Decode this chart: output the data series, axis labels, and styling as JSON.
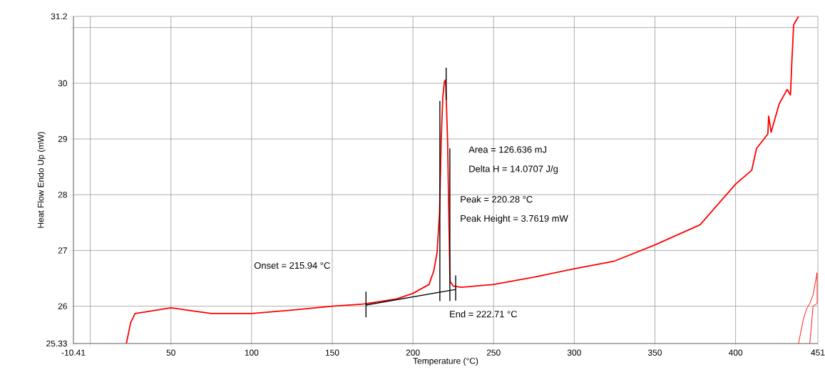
{
  "chart_data": {
    "type": "line",
    "xlabel": "Temperature (°C)",
    "ylabel": "Heat Flow Endo Up (mW)",
    "xlim": [
      -10.41,
      451
    ],
    "ylim": [
      25.33,
      31.2
    ],
    "xticks": [
      -10.41,
      {
        "value": 0,
        "label": null
      },
      50,
      100,
      150,
      200,
      250,
      300,
      350,
      400,
      451
    ],
    "yticks": [
      25.33,
      26,
      27,
      28,
      29,
      30,
      {
        "value": 31,
        "label": null
      },
      31.2
    ],
    "grid": true,
    "series": [
      {
        "color": "#ff0000",
        "x": [
          22.4,
          25,
          27.8,
          35,
          50,
          60,
          75,
          100,
          125,
          150,
          170,
          190,
          200,
          210,
          213,
          215,
          216.5,
          217.5,
          218.5,
          219.5,
          220.28,
          221.5,
          222.3,
          223,
          225,
          230,
          250,
          275,
          300,
          325,
          350,
          378,
          400,
          410,
          413,
          420,
          420.5,
          422,
          427,
          432,
          434,
          435,
          436,
          439
        ],
        "values": [
          25.33,
          25.7,
          25.87,
          25.9,
          25.97,
          25.93,
          25.87,
          25.87,
          25.93,
          26.0,
          26.04,
          26.13,
          26.23,
          26.39,
          26.64,
          26.97,
          27.68,
          28.96,
          29.74,
          30.03,
          30.06,
          28.96,
          27.55,
          26.45,
          26.36,
          26.34,
          26.39,
          26.52,
          26.67,
          26.81,
          27.1,
          27.46,
          28.19,
          28.44,
          28.83,
          29.09,
          29.41,
          29.12,
          29.63,
          29.89,
          29.79,
          30.47,
          31.05,
          31.2
        ]
      },
      {
        "color": "#ff0000",
        "x": [
          439,
          442,
          444,
          446,
          448,
          450.5,
          450.6,
          448,
          446
        ],
        "values": [
          25.33,
          25.77,
          25.95,
          26.05,
          26.2,
          26.6,
          26.05,
          26.0,
          25.33
        ]
      },
      {
        "color": "#000000",
        "x": [
          170.9,
          226.5
        ],
        "values": [
          26.02,
          26.3
        ]
      },
      {
        "color": "#000000",
        "x": [
          170.9,
          170.9
        ],
        "values": [
          25.8,
          26.26
        ]
      },
      {
        "color": "#000000",
        "x": [
          216.7,
          216.7
        ],
        "values": [
          26.09,
          29.68
        ]
      },
      {
        "color": "#000000",
        "x": [
          220.6,
          220.6
        ],
        "values": [
          30.28,
          29.7
        ]
      },
      {
        "color": "#000000",
        "x": [
          222.9,
          222.9
        ],
        "values": [
          28.83,
          26.09
        ]
      },
      {
        "color": "#000000",
        "x": [
          226.5,
          226.5
        ],
        "values": [
          26.1,
          26.55
        ]
      }
    ],
    "annotations": [
      "Onset = 215.94 °C",
      "Area = 126.636 mJ",
      "Delta H = 14.0707 J/g",
      "Peak = 220.28 °C",
      "Peak Height = 3.7619 mW",
      "End = 222.71 °C"
    ]
  }
}
